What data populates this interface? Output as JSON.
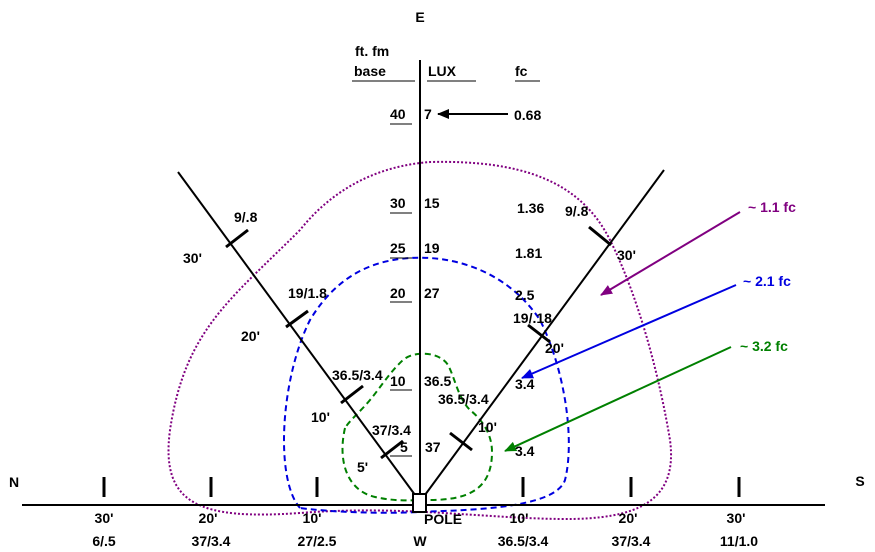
{
  "compass": {
    "north": "N",
    "south": "S",
    "east": "E",
    "west": "W"
  },
  "pole_label": "POLE",
  "column_headers": {
    "distance_line1": "ft. fm",
    "distance_line2": "base",
    "lux": "LUX",
    "fc": "fc"
  },
  "center_readings": [
    {
      "distance": "40",
      "lux": "7",
      "fc": "0.68"
    },
    {
      "distance": "30",
      "lux": "15",
      "fc": "1.36"
    },
    {
      "distance": "25",
      "lux": "19",
      "fc": "1.81"
    },
    {
      "distance": "20",
      "lux": "27",
      "fc": "2.5"
    },
    {
      "distance": "10",
      "lux": "36.5",
      "fc": "3.4"
    },
    {
      "distance": "5",
      "lux": "37",
      "fc": "3.4"
    }
  ],
  "left_diagonal": [
    {
      "distance": "5'",
      "reading": ""
    },
    {
      "distance": "10'",
      "reading": "37/3.4"
    },
    {
      "distance": "20'",
      "reading": "36.5/3.4"
    },
    {
      "distance": "30'",
      "reading": "19/1.8"
    },
    {
      "distance": "",
      "reading": "9/.8"
    }
  ],
  "right_diagonal": [
    {
      "distance": "10'",
      "reading": "36.5/3.4"
    },
    {
      "distance": "20'",
      "reading": "19/.18"
    },
    {
      "distance": "30'",
      "reading": "9/.8"
    }
  ],
  "baseline": [
    {
      "distance": "30'",
      "reading": "6/.5"
    },
    {
      "distance": "20'",
      "reading": "37/3.4"
    },
    {
      "distance": "10'",
      "reading": "27/2.5"
    },
    {
      "distance": "10'",
      "reading": "36.5/3.4"
    },
    {
      "distance": "20'",
      "reading": "37/3.4"
    },
    {
      "distance": "30'",
      "reading": "11/1.0"
    }
  ],
  "contours": [
    {
      "label": "~ 1.1 fc",
      "color": "#800080"
    },
    {
      "label": "~ 2.1 fc",
      "color": "#0000e0"
    },
    {
      "label": "~ 3.2 fc",
      "color": "#008000"
    }
  ]
}
